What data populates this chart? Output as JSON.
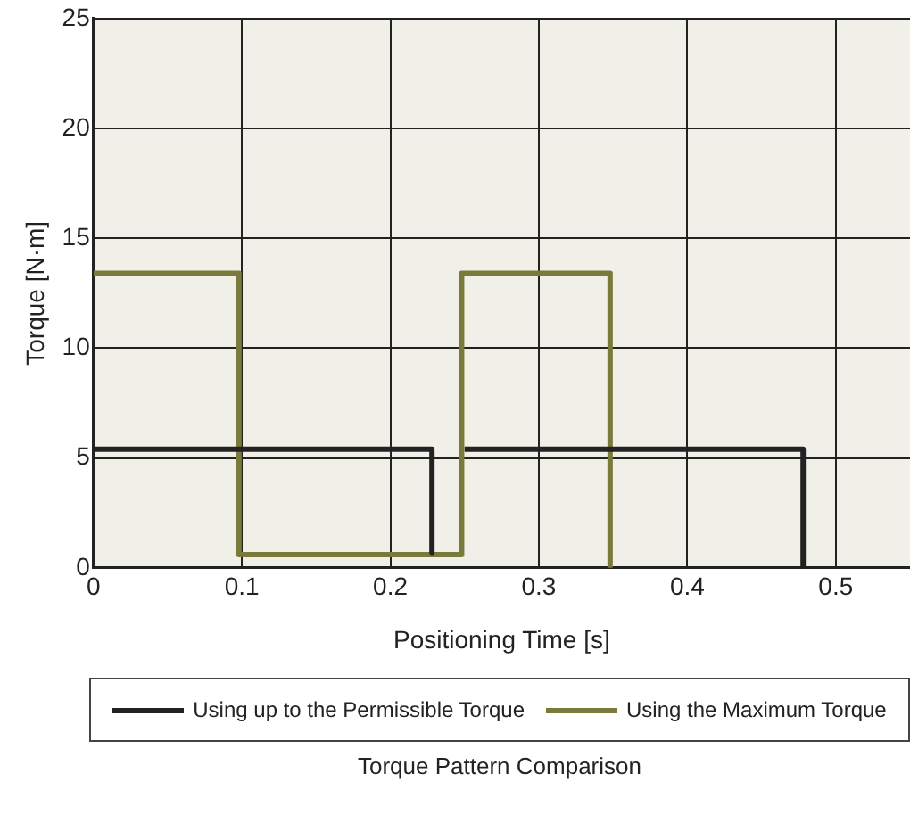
{
  "chart_data": {
    "type": "line",
    "title": "Torque Pattern Comparison",
    "xlabel": "Positioning Time [s]",
    "ylabel": "Torque [N·m]",
    "xlim": [
      0,
      0.55
    ],
    "xticks": [
      0,
      0.1,
      0.2,
      0.3,
      0.4,
      0.5
    ],
    "ylim": [
      0,
      25
    ],
    "yticks": [
      0,
      5,
      10,
      15,
      20,
      25
    ],
    "grid": true,
    "legend": "bottom",
    "marker": "none",
    "line_style": "solid",
    "series": [
      {
        "name": "Using up to the Permissible Torque",
        "color": "#222222",
        "x": [
          0,
          0.228,
          0.228,
          0.24,
          0.25,
          0.478,
          0.478
        ],
        "values": [
          5.4,
          5.4,
          0.7,
          null,
          5.4,
          5.4,
          0
        ]
      },
      {
        "name": "Using the Maximum Torque",
        "color": "#7a7b3a",
        "x": [
          0,
          0.098,
          0.098,
          0.248,
          0.248,
          0.348,
          0.348
        ],
        "values": [
          13.4,
          13.4,
          0.6,
          0.6,
          13.4,
          13.4,
          0
        ]
      }
    ]
  }
}
